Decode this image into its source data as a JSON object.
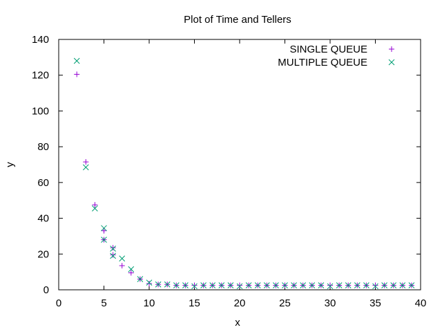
{
  "chart_data": {
    "type": "scatter",
    "title": "Plot of Time and Tellers",
    "xlabel": "x",
    "ylabel": "y",
    "xlim": [
      0,
      40
    ],
    "ylim": [
      0,
      140
    ],
    "xticks": [
      0,
      5,
      10,
      15,
      20,
      25,
      30,
      35,
      40
    ],
    "yticks": [
      0,
      20,
      40,
      60,
      80,
      100,
      120,
      140
    ],
    "grid": false,
    "legend_position": "top-right",
    "series": [
      {
        "name": "SINGLE QUEUE",
        "marker": "plus",
        "color": "#9400d3",
        "x": [
          2,
          3,
          4,
          5,
          5,
          6,
          6,
          7,
          8,
          9,
          10,
          11,
          12,
          13,
          14,
          15,
          16,
          17,
          18,
          19,
          20,
          21,
          22,
          23,
          24,
          25,
          26,
          27,
          28,
          29,
          30,
          31,
          32,
          33,
          34,
          35,
          36,
          37,
          38,
          39
        ],
        "y": [
          120.5,
          71.5,
          47.5,
          33,
          28,
          23.5,
          19.5,
          13.5,
          9.5,
          6,
          3.5,
          3,
          3,
          2.5,
          2.5,
          2.5,
          2.5,
          2.5,
          2.5,
          2.5,
          2.5,
          2.5,
          2.5,
          2.5,
          2.5,
          2.5,
          2.5,
          2.5,
          2.5,
          2.5,
          2.5,
          2.5,
          2.5,
          2.5,
          2.5,
          2.5,
          2.5,
          2.5,
          2.5,
          2.5
        ]
      },
      {
        "name": "MULTIPLE QUEUE",
        "marker": "cross",
        "color": "#009e73",
        "x": [
          2,
          3,
          4,
          5,
          5,
          6,
          6,
          7,
          8,
          9,
          10,
          11,
          12,
          13,
          14,
          15,
          16,
          17,
          18,
          19,
          20,
          21,
          22,
          23,
          24,
          25,
          26,
          27,
          28,
          29,
          30,
          31,
          32,
          33,
          34,
          35,
          36,
          37,
          38,
          39
        ],
        "y": [
          128,
          68.5,
          45.5,
          34.5,
          28,
          23,
          19,
          17.5,
          11.5,
          6,
          4,
          3,
          3,
          2.5,
          2.5,
          2,
          2.5,
          2.5,
          2.5,
          2.5,
          2,
          2.5,
          2.5,
          2.5,
          2.5,
          2.5,
          2.5,
          2.5,
          2.5,
          2.5,
          2,
          2.5,
          2.5,
          2.5,
          2.5,
          2,
          2.5,
          2.5,
          2.5,
          2.5
        ]
      }
    ]
  }
}
